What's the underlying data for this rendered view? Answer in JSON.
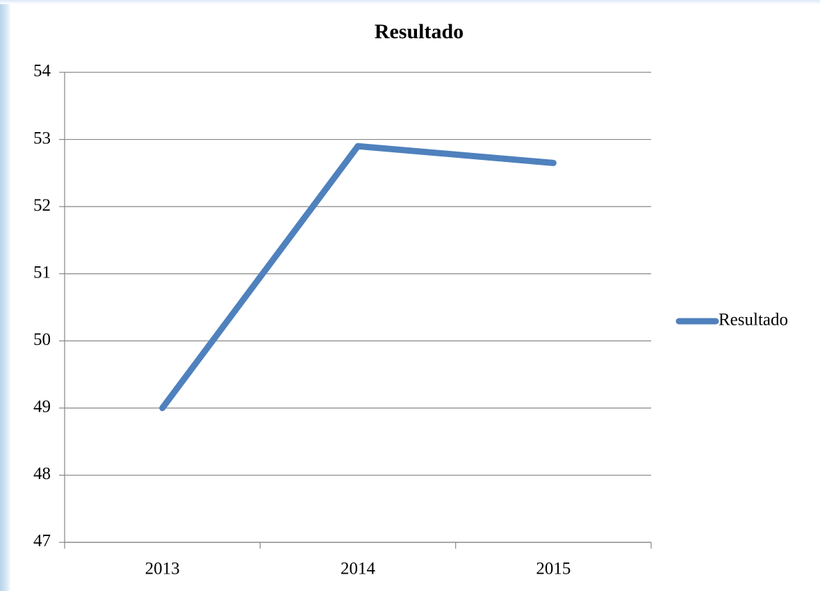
{
  "chart_data": {
    "type": "line",
    "title": "Resultado",
    "categories": [
      "2013",
      "2014",
      "2015"
    ],
    "series": [
      {
        "name": "Resultado",
        "color": "#4f81bd",
        "values": [
          49,
          52.9,
          52.65
        ]
      }
    ],
    "ylim": [
      47,
      54
    ],
    "yticks": [
      47,
      48,
      49,
      50,
      51,
      52,
      53,
      54
    ],
    "grid": true,
    "legend": "right"
  }
}
